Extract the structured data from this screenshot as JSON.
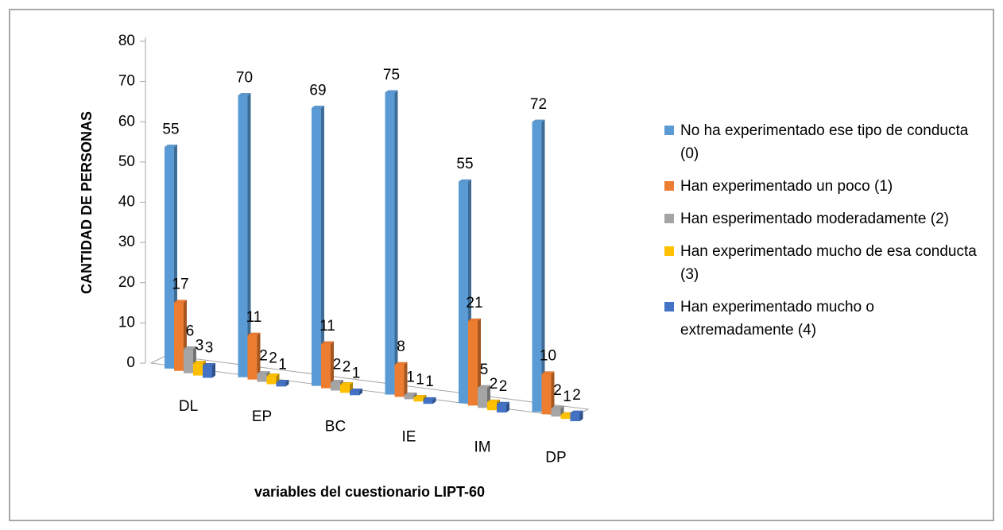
{
  "chart_data": {
    "type": "bar3d",
    "x_label": "variables del cuestionario LIPT-60",
    "y_label": "CANTIDAD DE PERSONAS",
    "categories": [
      "DL",
      "EP",
      "BC",
      "IE",
      "IM",
      "DP"
    ],
    "series": [
      {
        "name": "No ha experimentado ese tipo de conducta (0)",
        "color": "#5b9bd5",
        "values": [
          55,
          70,
          69,
          75,
          55,
          72
        ]
      },
      {
        "name": "Han experimentado un poco (1)",
        "color": "#ed7d31",
        "values": [
          17,
          11,
          11,
          8,
          21,
          10
        ]
      },
      {
        "name": "Han esperimentado moderadamente (2)",
        "color": "#a5a5a5",
        "values": [
          6,
          2,
          2,
          1,
          5,
          2
        ]
      },
      {
        "name": "Han experimentado mucho de esa conducta (3)",
        "color": "#ffc000",
        "values": [
          3,
          2,
          2,
          1,
          2,
          1
        ]
      },
      {
        "name": "Han experimentado mucho o extremadamente (4)",
        "color": "#4472c4",
        "values": [
          3,
          1,
          1,
          1,
          2,
          2
        ]
      }
    ],
    "ylim": [
      0,
      80
    ],
    "yticks": [
      0,
      10,
      20,
      30,
      40,
      50,
      60,
      70,
      80
    ],
    "legend": "right"
  }
}
